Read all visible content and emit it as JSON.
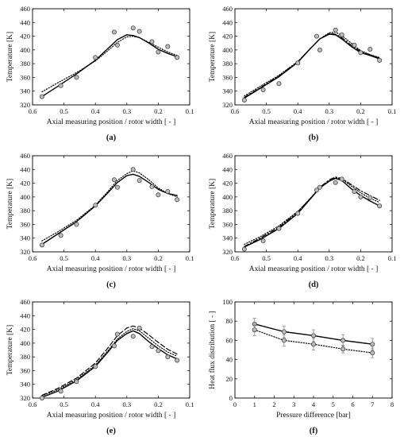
{
  "chart_data": [
    {
      "type": "line",
      "panel": "(a)",
      "xlabel": "Axial measuring position / rotor width [ - ]",
      "ylabel": "Temperature [K]",
      "xlim": [
        0.6,
        0.1
      ],
      "ylim": [
        320,
        460
      ],
      "xticks": [
        0.6,
        0.5,
        0.4,
        0.3,
        0.2,
        0.1
      ],
      "yticks": [
        320,
        340,
        360,
        380,
        400,
        420,
        440,
        460
      ],
      "grid": false,
      "series": [
        {
          "style": "solid",
          "x": [
            0.57,
            0.52,
            0.46,
            0.4,
            0.36,
            0.33,
            0.3,
            0.28,
            0.26,
            0.23,
            0.2,
            0.17,
            0.14
          ],
          "y": [
            332,
            347,
            365,
            385,
            402,
            415,
            422,
            421,
            418,
            410,
            401,
            395,
            390
          ]
        },
        {
          "style": "dotted",
          "x": [
            0.57,
            0.52,
            0.46,
            0.4,
            0.36,
            0.33,
            0.3,
            0.28,
            0.26,
            0.23,
            0.2,
            0.17,
            0.14
          ],
          "y": [
            339,
            352,
            367,
            384,
            399,
            411,
            419,
            420,
            418,
            411,
            404,
            397,
            392
          ]
        },
        {
          "style": "markers",
          "x": [
            0.57,
            0.51,
            0.46,
            0.4,
            0.34,
            0.33,
            0.28,
            0.26,
            0.22,
            0.2,
            0.17,
            0.14
          ],
          "y": [
            332,
            348,
            360,
            389,
            426,
            407,
            432,
            427,
            412,
            397,
            405,
            389
          ]
        }
      ]
    },
    {
      "type": "line",
      "panel": "(b)",
      "xlabel": "Axial measuring position / rotor width [ - ]",
      "ylabel": "Temperature [K]",
      "xlim": [
        0.6,
        0.1
      ],
      "ylim": [
        320,
        460
      ],
      "xticks": [
        0.6,
        0.5,
        0.4,
        0.3,
        0.2,
        0.1
      ],
      "yticks": [
        320,
        340,
        360,
        380,
        400,
        420,
        440,
        460
      ],
      "grid": false,
      "series": [
        {
          "style": "solid",
          "x": [
            0.57,
            0.52,
            0.46,
            0.4,
            0.36,
            0.33,
            0.3,
            0.28,
            0.26,
            0.23,
            0.2,
            0.17,
            0.14
          ],
          "y": [
            330,
            344,
            361,
            382,
            402,
            416,
            423,
            422,
            416,
            405,
            396,
            392,
            387
          ]
        },
        {
          "style": "dotted",
          "x": [
            0.57,
            0.52,
            0.46,
            0.4,
            0.36,
            0.33,
            0.3,
            0.28,
            0.26,
            0.23,
            0.2,
            0.17,
            0.14
          ],
          "y": [
            333,
            347,
            363,
            383,
            402,
            416,
            425,
            426,
            421,
            410,
            399,
            393,
            389
          ]
        },
        {
          "style": "dashdot",
          "x": [
            0.57,
            0.52,
            0.46,
            0.4,
            0.36,
            0.33,
            0.3,
            0.28,
            0.26,
            0.23,
            0.2,
            0.17,
            0.14
          ],
          "y": [
            331,
            345,
            362,
            383,
            402,
            416,
            424,
            423,
            418,
            407,
            398,
            393,
            388
          ]
        },
        {
          "style": "markers",
          "x": [
            0.57,
            0.51,
            0.46,
            0.4,
            0.34,
            0.33,
            0.28,
            0.26,
            0.22,
            0.2,
            0.17,
            0.14
          ],
          "y": [
            327,
            342,
            351,
            381,
            420,
            400,
            429,
            422,
            407,
            396,
            401,
            385
          ]
        }
      ]
    },
    {
      "type": "line",
      "panel": "(c)",
      "xlabel": "Axial measuring position / rotor width [ - ]",
      "ylabel": "Temperature [K]",
      "xlim": [
        0.6,
        0.1
      ],
      "ylim": [
        320,
        460
      ],
      "xticks": [
        0.6,
        0.5,
        0.4,
        0.3,
        0.2,
        0.1
      ],
      "yticks": [
        320,
        340,
        360,
        380,
        400,
        420,
        440,
        460
      ],
      "grid": false,
      "series": [
        {
          "style": "solid",
          "x": [
            0.57,
            0.52,
            0.46,
            0.4,
            0.36,
            0.33,
            0.3,
            0.28,
            0.26,
            0.23,
            0.2,
            0.17,
            0.14
          ],
          "y": [
            331,
            346,
            364,
            387,
            406,
            421,
            431,
            433,
            430,
            421,
            411,
            405,
            402
          ]
        },
        {
          "style": "dotted",
          "x": [
            0.57,
            0.52,
            0.46,
            0.4,
            0.36,
            0.33,
            0.3,
            0.28,
            0.26,
            0.23,
            0.2,
            0.17,
            0.14
          ],
          "y": [
            336,
            349,
            366,
            388,
            408,
            424,
            434,
            438,
            435,
            425,
            413,
            405,
            400
          ]
        },
        {
          "style": "markers",
          "x": [
            0.57,
            0.51,
            0.46,
            0.4,
            0.34,
            0.33,
            0.28,
            0.26,
            0.22,
            0.2,
            0.17,
            0.14
          ],
          "y": [
            330,
            344,
            360,
            388,
            425,
            414,
            440,
            424,
            415,
            403,
            408,
            396
          ]
        }
      ]
    },
    {
      "type": "line",
      "panel": "(d)",
      "xlabel": "Axial measuring position / rotor width [ - ]",
      "ylabel": "Temperature [K]",
      "xlim": [
        0.6,
        0.1
      ],
      "ylim": [
        320,
        460
      ],
      "xticks": [
        0.6,
        0.5,
        0.4,
        0.3,
        0.2,
        0.1
      ],
      "yticks": [
        320,
        340,
        360,
        380,
        400,
        420,
        440,
        460
      ],
      "grid": false,
      "series": [
        {
          "style": "solid",
          "x": [
            0.57,
            0.52,
            0.46,
            0.4,
            0.36,
            0.33,
            0.3,
            0.28,
            0.26,
            0.23,
            0.2,
            0.17,
            0.14
          ],
          "y": [
            327,
            338,
            354,
            376,
            397,
            413,
            423,
            427,
            424,
            412,
            402,
            394,
            387
          ]
        },
        {
          "style": "dotted",
          "x": [
            0.57,
            0.52,
            0.46,
            0.4,
            0.36,
            0.33,
            0.3,
            0.28,
            0.26,
            0.23,
            0.2,
            0.17,
            0.14
          ],
          "y": [
            331,
            342,
            358,
            379,
            398,
            413,
            423,
            428,
            426,
            416,
            406,
            398,
            392
          ]
        },
        {
          "style": "dashdot",
          "x": [
            0.57,
            0.52,
            0.46,
            0.4,
            0.36,
            0.33,
            0.3,
            0.28,
            0.26,
            0.23,
            0.2,
            0.17,
            0.14
          ],
          "y": [
            328,
            340,
            356,
            378,
            398,
            414,
            425,
            429,
            427,
            418,
            409,
            402,
            395
          ]
        },
        {
          "style": "markers",
          "x": [
            0.57,
            0.51,
            0.46,
            0.4,
            0.34,
            0.33,
            0.28,
            0.26,
            0.22,
            0.2,
            0.17,
            0.14
          ],
          "y": [
            324,
            336,
            354,
            376,
            410,
            414,
            421,
            426,
            408,
            400,
            399,
            387
          ]
        }
      ]
    },
    {
      "type": "line",
      "panel": "(e)",
      "xlabel": "Axial measuring position / rotor width [ - ]",
      "ylabel": "Temperature [K]",
      "xlim": [
        0.6,
        0.1
      ],
      "ylim": [
        320,
        460
      ],
      "xticks": [
        0.6,
        0.5,
        0.4,
        0.3,
        0.2,
        0.1
      ],
      "yticks": [
        320,
        340,
        360,
        380,
        400,
        420,
        440,
        460
      ],
      "grid": false,
      "series": [
        {
          "style": "solid",
          "x": [
            0.57,
            0.52,
            0.46,
            0.4,
            0.36,
            0.33,
            0.3,
            0.28,
            0.26,
            0.23,
            0.2,
            0.17,
            0.14
          ],
          "y": [
            321,
            330,
            345,
            366,
            387,
            404,
            414,
            418,
            414,
            402,
            392,
            383,
            377
          ]
        },
        {
          "style": "dotted",
          "x": [
            0.57,
            0.52,
            0.46,
            0.4,
            0.36,
            0.33,
            0.3,
            0.28,
            0.26,
            0.23,
            0.2,
            0.17,
            0.14
          ],
          "y": [
            323,
            332,
            347,
            368,
            389,
            406,
            417,
            421,
            418,
            407,
            396,
            387,
            381
          ]
        },
        {
          "style": "dashed",
          "x": [
            0.57,
            0.52,
            0.46,
            0.4,
            0.36,
            0.33,
            0.3,
            0.28,
            0.26,
            0.23,
            0.2,
            0.17,
            0.14
          ],
          "y": [
            324,
            334,
            349,
            371,
            393,
            411,
            422,
            425,
            422,
            412,
            401,
            391,
            384
          ]
        },
        {
          "style": "markers",
          "x": [
            0.57,
            0.51,
            0.46,
            0.4,
            0.34,
            0.33,
            0.28,
            0.26,
            0.22,
            0.2,
            0.17,
            0.14
          ],
          "y": [
            320,
            330,
            344,
            366,
            396,
            413,
            410,
            422,
            395,
            389,
            380,
            375
          ]
        }
      ]
    },
    {
      "type": "line",
      "panel": "(f)",
      "xlabel": "Pressure difference [bar]",
      "ylabel": "Heat flux distribution [ - ]",
      "xlim": [
        0,
        8
      ],
      "ylim": [
        0,
        100
      ],
      "xticks": [
        0,
        1,
        2,
        3,
        4,
        5,
        6,
        7,
        8
      ],
      "yticks": [
        0,
        20,
        40,
        60,
        80,
        100
      ],
      "grid": false,
      "series": [
        {
          "style": "solid-markers",
          "x": [
            1,
            2.5,
            4,
            5.5,
            7
          ],
          "y": [
            77,
            69,
            65,
            60,
            56
          ],
          "err": [
            6,
            6,
            6,
            6,
            6
          ]
        },
        {
          "style": "dotted-markers",
          "x": [
            1,
            2.5,
            4,
            5.5,
            7
          ],
          "y": [
            71,
            60,
            56,
            51,
            47
          ],
          "err": [
            6,
            6,
            6,
            4,
            5
          ]
        }
      ]
    }
  ]
}
